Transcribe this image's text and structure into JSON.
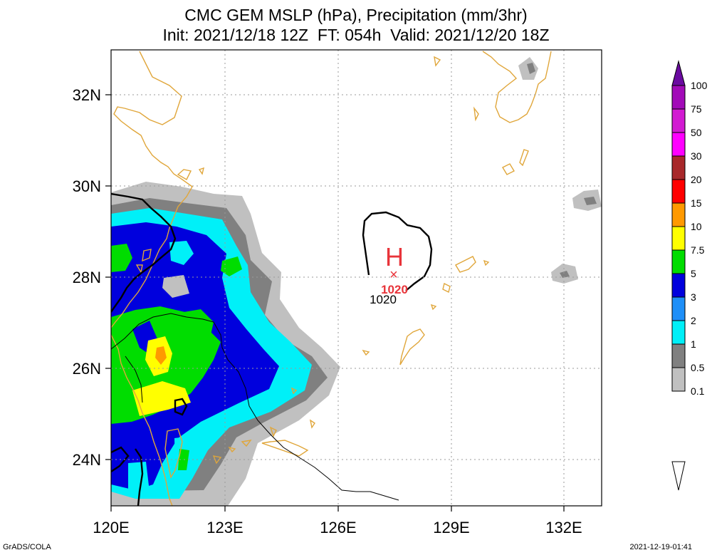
{
  "title": {
    "line1": "CMC GEM MSLP (hPa), Precipitation (mm/3hr)",
    "line2": "Init: 2021/12/18 12Z  FT: 054h  Valid: 2021/12/20 18Z"
  },
  "axes": {
    "x_ticks": [
      "120E",
      "123E",
      "126E",
      "129E",
      "132E"
    ],
    "y_ticks": [
      "32N",
      "30N",
      "28N",
      "26N",
      "24N"
    ]
  },
  "map": {
    "lon_range": [
      120,
      133
    ],
    "lat_range": [
      23,
      33
    ],
    "high_pressure": {
      "symbol": "H",
      "marker": "×",
      "value": "1020",
      "lon": 127.5,
      "lat": 28.1
    },
    "isobar_label": "1020",
    "colors": {
      "coast": "#e0a63a",
      "isobar": "#000000",
      "high": "#e8343a",
      "grid": "#9a9a9a"
    }
  },
  "colorbar": {
    "labels": [
      "100",
      "75",
      "50",
      "30",
      "20",
      "15",
      "10",
      "7.5",
      "5",
      "3",
      "2",
      "1",
      "0.5",
      "0.1"
    ],
    "colors": [
      "#6a0aa0",
      "#a20ab8",
      "#d21ad2",
      "#ff00ff",
      "#a8282a",
      "#ff0000",
      "#ff9900",
      "#ffff00",
      "#00dd00",
      "#0000dd",
      "#1e8ff8",
      "#00f0f8",
      "#808080",
      "#c0c0c0"
    ]
  },
  "footer": {
    "left": "GrADS/COLA",
    "right": "2021-12-19-01:41"
  }
}
